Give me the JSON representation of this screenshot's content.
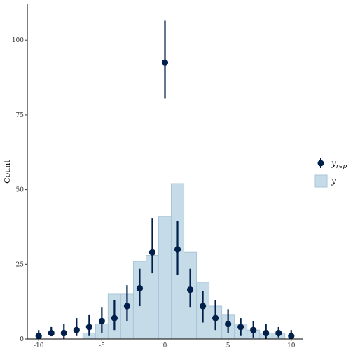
{
  "chart_data": {
    "type": "bar",
    "ylabel": "Count",
    "xlabel": "",
    "xlim": [
      -10.9,
      10.9
    ],
    "ylim": [
      0,
      112
    ],
    "x_ticks": [
      {
        "value": -10,
        "label": "-10"
      },
      {
        "value": -5,
        "label": "-5"
      },
      {
        "value": 0,
        "label": "0"
      },
      {
        "value": 5,
        "label": "5"
      },
      {
        "value": 10,
        "label": "10"
      }
    ],
    "y_ticks": [
      {
        "value": 0,
        "label": "0"
      },
      {
        "value": 25,
        "label": "25"
      },
      {
        "value": 50,
        "label": "50"
      },
      {
        "value": 75,
        "label": "75"
      },
      {
        "value": 100,
        "label": "100"
      }
    ],
    "bar_series": {
      "name": "y",
      "color": "#c6dbe8",
      "edge_color": "#a9c6d9",
      "bins": [
        {
          "x": -10,
          "count": 0
        },
        {
          "x": -9,
          "count": 0
        },
        {
          "x": -8,
          "count": 0
        },
        {
          "x": -7,
          "count": 0
        },
        {
          "x": -6,
          "count": 2
        },
        {
          "x": -5,
          "count": 5
        },
        {
          "x": -4,
          "count": 15
        },
        {
          "x": -3,
          "count": 15
        },
        {
          "x": -2,
          "count": 26
        },
        {
          "x": -1,
          "count": 28
        },
        {
          "x": 0,
          "count": 41
        },
        {
          "x": 1,
          "count": 52
        },
        {
          "x": 2,
          "count": 29
        },
        {
          "x": 3,
          "count": 19
        },
        {
          "x": 4,
          "count": 11
        },
        {
          "x": 5,
          "count": 8
        },
        {
          "x": 6,
          "count": 5
        },
        {
          "x": 7,
          "count": 3
        },
        {
          "x": 8,
          "count": 2
        },
        {
          "x": 9,
          "count": 2
        },
        {
          "x": 10,
          "count": 0
        }
      ]
    },
    "point_series": {
      "name": "y",
      "name_subscript": "rep",
      "color": "#011f4b",
      "points": [
        {
          "x": -10,
          "y": 1,
          "low": 0,
          "high": 3
        },
        {
          "x": -9,
          "y": 2,
          "low": 1,
          "high": 4
        },
        {
          "x": -8,
          "y": 2,
          "low": 0,
          "high": 5
        },
        {
          "x": -7,
          "y": 3,
          "low": 1,
          "high": 7
        },
        {
          "x": -6,
          "y": 4,
          "low": 1,
          "high": 8
        },
        {
          "x": -5,
          "y": 6,
          "low": 2,
          "high": 10.5
        },
        {
          "x": -4,
          "y": 7,
          "low": 3,
          "high": 13
        },
        {
          "x": -3,
          "y": 11,
          "low": 6,
          "high": 18
        },
        {
          "x": -2,
          "y": 17,
          "low": 11,
          "high": 23.5
        },
        {
          "x": -1,
          "y": 29,
          "low": 22,
          "high": 40.5
        },
        {
          "x": 0,
          "y": 92.5,
          "low": 80.5,
          "high": 106.5
        },
        {
          "x": 1,
          "y": 30,
          "low": 21.5,
          "high": 39.5
        },
        {
          "x": 2,
          "y": 16.5,
          "low": 10.5,
          "high": 23.5
        },
        {
          "x": 3,
          "y": 11,
          "low": 5.5,
          "high": 16
        },
        {
          "x": 4,
          "y": 7,
          "low": 3,
          "high": 13
        },
        {
          "x": 5,
          "y": 5,
          "low": 2,
          "high": 10
        },
        {
          "x": 6,
          "y": 4,
          "low": 1,
          "high": 7
        },
        {
          "x": 7,
          "y": 3,
          "low": 0.5,
          "high": 6
        },
        {
          "x": 8,
          "y": 2,
          "low": 0,
          "high": 5
        },
        {
          "x": 9,
          "y": 2,
          "low": 0.5,
          "high": 4
        },
        {
          "x": 10,
          "y": 1,
          "low": 0,
          "high": 3
        }
      ]
    },
    "legend": {
      "position": "right",
      "entries": [
        {
          "symbol": "point-range",
          "label": "y",
          "subscript": "rep"
        },
        {
          "symbol": "bar",
          "label": "y"
        }
      ]
    },
    "grid": false
  }
}
